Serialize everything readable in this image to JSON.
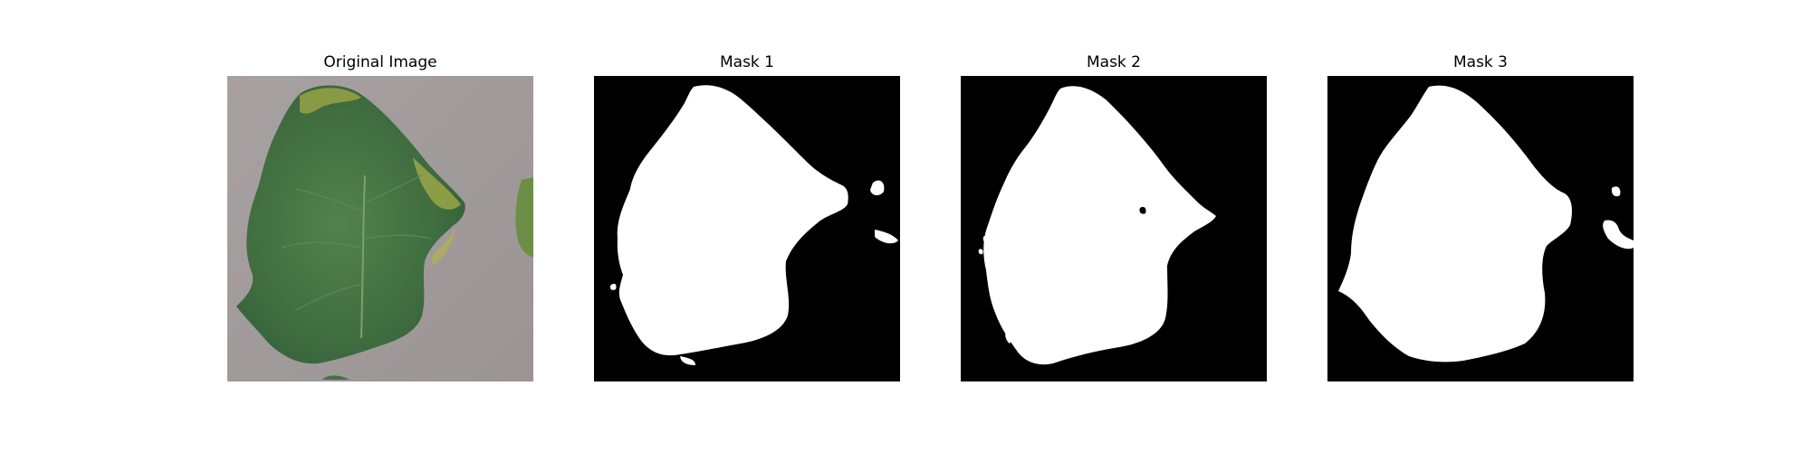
{
  "figure": {
    "panels": [
      {
        "title": "Original Image",
        "content": "tomato-leaf-photo"
      },
      {
        "title": "Mask 1",
        "content": "binary-segmentation-mask"
      },
      {
        "title": "Mask 2",
        "content": "binary-segmentation-mask"
      },
      {
        "title": "Mask 3",
        "content": "binary-segmentation-mask"
      }
    ]
  },
  "colors": {
    "background": "#ffffff",
    "mask_foreground": "#ffffff",
    "mask_background": "#000000",
    "photo_background": "#a39c9c",
    "leaf_dark": "#3f6a3f",
    "leaf_mid": "#4f7d4a",
    "leaf_yellow": "#b4b04a"
  }
}
